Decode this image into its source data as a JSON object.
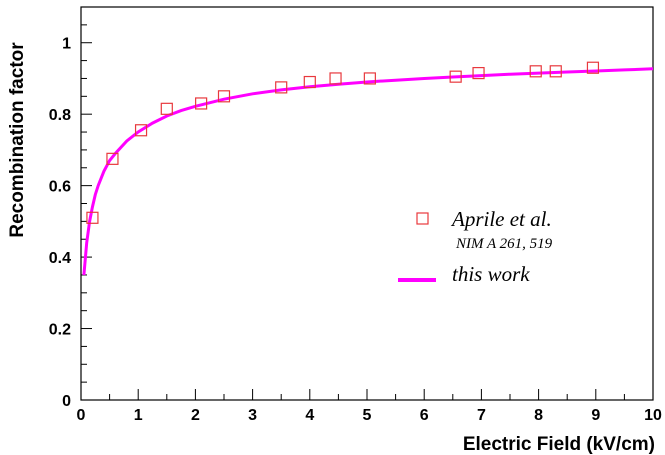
{
  "chart_data": {
    "type": "scatter",
    "title": "",
    "xlabel": "Electric Field (kV/cm)",
    "ylabel": "Recombination factor",
    "xlim": [
      0,
      10
    ],
    "ylim": [
      0,
      1.1
    ],
    "x_ticks": [
      "0",
      "1",
      "2",
      "3",
      "4",
      "5",
      "6",
      "7",
      "8",
      "9",
      "10"
    ],
    "y_ticks": [
      "0",
      "0.2",
      "0.4",
      "0.6",
      "0.8",
      "1"
    ],
    "grid": false,
    "legend_position": "right-center",
    "series": [
      {
        "name": "Aprile et al.",
        "subtitle": "NIM A 261, 519",
        "kind": "markers",
        "marker": "open-square",
        "color": "#e8383d",
        "x": [
          0.2,
          0.55,
          1.05,
          1.5,
          2.1,
          2.5,
          3.5,
          4.0,
          4.45,
          5.05,
          6.55,
          6.95,
          7.95,
          8.3,
          8.95
        ],
        "y": [
          0.51,
          0.675,
          0.755,
          0.815,
          0.83,
          0.85,
          0.875,
          0.89,
          0.9,
          0.9,
          0.905,
          0.915,
          0.92,
          0.92,
          0.93
        ]
      },
      {
        "name": "this work",
        "kind": "line",
        "color": "#ff00ff",
        "x": [
          0.05,
          0.1,
          0.15,
          0.2,
          0.25,
          0.3,
          0.4,
          0.5,
          0.6,
          0.8,
          1.0,
          1.25,
          1.5,
          1.75,
          2.0,
          2.5,
          3.0,
          3.5,
          4.0,
          4.5,
          5.0,
          5.5,
          6.0,
          6.5,
          7.0,
          7.5,
          8.0,
          8.5,
          9.0,
          9.5,
          10.0
        ],
        "y": [
          0.35,
          0.44,
          0.5,
          0.54,
          0.575,
          0.6,
          0.64,
          0.67,
          0.69,
          0.725,
          0.75,
          0.775,
          0.795,
          0.81,
          0.822,
          0.842,
          0.857,
          0.868,
          0.877,
          0.884,
          0.89,
          0.895,
          0.9,
          0.904,
          0.908,
          0.912,
          0.915,
          0.918,
          0.921,
          0.924,
          0.927
        ]
      }
    ]
  }
}
